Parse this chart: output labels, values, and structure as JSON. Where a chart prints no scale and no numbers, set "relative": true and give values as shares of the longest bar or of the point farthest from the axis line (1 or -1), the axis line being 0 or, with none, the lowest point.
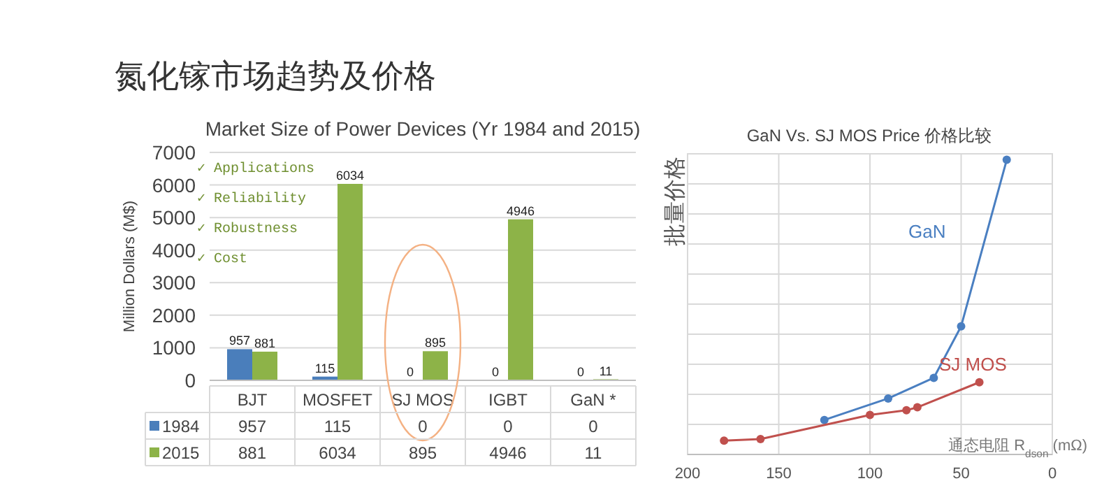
{
  "chart_data": [
    {
      "type": "bar",
      "title": "Market Size of Power Devices (Yr 1984 and 2015)",
      "ylabel": "Million Dollars (M$)",
      "categories": [
        "BJT",
        "MOSFET",
        "SJ MOS",
        "IGBT",
        "GaN *"
      ],
      "series": [
        {
          "name": "1984",
          "color": "#4a7ebb",
          "values": [
            957,
            115,
            0,
            0,
            0
          ],
          "value_labels": [
            "957",
            "115",
            "0",
            "0",
            "0"
          ]
        },
        {
          "name": "2015",
          "color": "#8db348",
          "values": [
            881,
            6034,
            895,
            4946,
            11
          ],
          "value_labels": [
            "881",
            "6034",
            "895",
            "4946",
            "11"
          ]
        }
      ],
      "ylim": [
        0,
        7000
      ],
      "yticks": [
        0,
        1000,
        2000,
        3000,
        4000,
        5000,
        6000,
        7000
      ],
      "grid": "y",
      "legend": "bottom",
      "annotations": [
        "氮化镓市场趋势及价格",
        "✓ Applications",
        "✓ Reliability",
        "✓ Robustness",
        "✓ Cost"
      ]
    },
    {
      "type": "other",
      "annotations": [
        "957",
        "115",
        "0",
        "0",
        "0",
        "881",
        "6034",
        "895",
        "4946",
        "11"
      ]
    },
    {
      "type": "line",
      "title": "GaN Vs. SJ MOS Price 价格比较",
      "ylabel": "批量价格",
      "xlabel": "通态电阻 R$_{dson}$ (mΩ)",
      "relative": true,
      "xlim": [
        200,
        0
      ],
      "xticks": [
        200,
        150,
        100,
        50,
        0
      ],
      "grid": true,
      "marker": "circle",
      "line_style": "solid",
      "series": [
        {
          "name": "GaN",
          "color": "#4a7fc1",
          "x": [
            125,
            90,
            65,
            50,
            25
          ],
          "values": [
            0.117,
            0.19,
            0.26,
            0.435,
            1
          ]
        },
        {
          "name": "SJ MOS",
          "color": "#c0504d",
          "x": [
            180,
            160,
            100,
            80,
            74,
            40
          ],
          "values": [
            0.047,
            0.052,
            0.134,
            0.15,
            0.16,
            0.245
          ]
        }
      ]
    }
  ]
}
